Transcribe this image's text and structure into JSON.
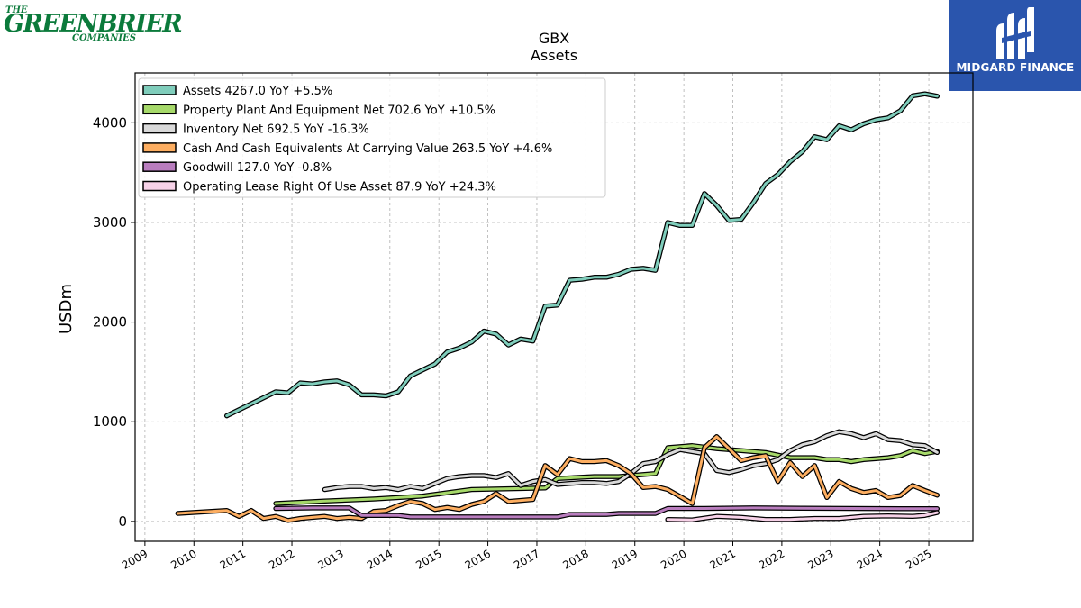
{
  "logos": {
    "company_the": "THE",
    "company_main": "GREENBRIER",
    "company_sub": "COMPANIES",
    "publisher": "MIDGARD FINANCE"
  },
  "chart_data": {
    "type": "line",
    "title": "GBX",
    "subtitle": "Assets",
    "ylabel": "USDm",
    "xlabel": "",
    "ylim": [
      -200,
      4500
    ],
    "xlim": [
      2008.8,
      2025.9
    ],
    "yticks": [
      0,
      1000,
      2000,
      3000,
      4000
    ],
    "xticks": [
      "2009",
      "2010",
      "2011",
      "2012",
      "2013",
      "2014",
      "2015",
      "2016",
      "2017",
      "2018",
      "2019",
      "2020",
      "2021",
      "2022",
      "2023",
      "2024",
      "2025"
    ],
    "grid": true,
    "legend_position": "top-left",
    "series": [
      {
        "name": "Assets",
        "legend": "Assets  4267.0 YoY +5.5%",
        "color": "#7fcdbb",
        "x": [
          2010.67,
          2011.67,
          2011.92,
          2012.17,
          2012.42,
          2012.67,
          2012.92,
          2013.17,
          2013.42,
          2013.67,
          2013.92,
          2014.17,
          2014.42,
          2014.67,
          2014.92,
          2015.17,
          2015.42,
          2015.67,
          2015.92,
          2016.17,
          2016.42,
          2016.67,
          2016.92,
          2017.17,
          2017.42,
          2017.67,
          2017.92,
          2018.17,
          2018.42,
          2018.67,
          2018.92,
          2019.17,
          2019.42,
          2019.67,
          2019.92,
          2020.17,
          2020.42,
          2020.67,
          2020.92,
          2021.17,
          2021.42,
          2021.67,
          2021.92,
          2022.17,
          2022.42,
          2022.67,
          2022.92,
          2023.17,
          2023.42,
          2023.67,
          2023.92,
          2024.17,
          2024.42,
          2024.67,
          2024.92,
          2025.17
        ],
        "y": [
          1060,
          1300,
          1290,
          1390,
          1380,
          1400,
          1410,
          1370,
          1270,
          1270,
          1260,
          1300,
          1460,
          1520,
          1580,
          1700,
          1740,
          1800,
          1910,
          1880,
          1770,
          1830,
          1810,
          2160,
          2170,
          2420,
          2430,
          2450,
          2450,
          2480,
          2530,
          2540,
          2520,
          3000,
          2970,
          2970,
          3290,
          3170,
          3020,
          3030,
          3200,
          3390,
          3480,
          3610,
          3710,
          3860,
          3830,
          3970,
          3930,
          3990,
          4030,
          4050,
          4120,
          4270,
          4290,
          4267
        ]
      },
      {
        "name": "Property Plant And Equipment Net",
        "legend": "Property Plant And Equipment Net  702.6 YoY +10.5%",
        "color": "#a6d96a",
        "x": [
          2011.67,
          2012.67,
          2013.67,
          2014.67,
          2015.67,
          2016.67,
          2017.17,
          2017.42,
          2018.17,
          2018.67,
          2019.17,
          2019.42,
          2019.67,
          2020.17,
          2020.67,
          2021.17,
          2021.67,
          2022.17,
          2022.67,
          2022.92,
          2023.17,
          2023.42,
          2023.67,
          2023.92,
          2024.17,
          2024.42,
          2024.67,
          2024.92,
          2025.17
        ],
        "y": [
          180,
          205,
          225,
          255,
          320,
          330,
          335,
          430,
          450,
          450,
          470,
          480,
          740,
          760,
          730,
          710,
          690,
          640,
          640,
          620,
          620,
          600,
          620,
          630,
          640,
          660,
          710,
          680,
          702.6
        ]
      },
      {
        "name": "Inventory Net",
        "legend": "Inventory Net  692.5 YoY -16.3%",
        "color": "#d9d9d9",
        "x": [
          2012.67,
          2012.92,
          2013.17,
          2013.42,
          2013.67,
          2013.92,
          2014.17,
          2014.42,
          2014.67,
          2014.92,
          2015.17,
          2015.42,
          2015.67,
          2015.92,
          2016.17,
          2016.42,
          2016.67,
          2016.92,
          2017.17,
          2017.42,
          2017.67,
          2017.92,
          2018.17,
          2018.42,
          2018.67,
          2018.92,
          2019.17,
          2019.42,
          2019.67,
          2019.92,
          2020.17,
          2020.42,
          2020.67,
          2020.92,
          2021.17,
          2021.42,
          2021.67,
          2021.92,
          2022.17,
          2022.42,
          2022.67,
          2022.92,
          2023.17,
          2023.42,
          2023.67,
          2023.92,
          2024.17,
          2024.42,
          2024.67,
          2024.92,
          2025.17
        ],
        "y": [
          320,
          340,
          350,
          350,
          330,
          340,
          320,
          350,
          330,
          380,
          430,
          450,
          460,
          460,
          440,
          480,
          360,
          400,
          420,
          370,
          380,
          390,
          390,
          380,
          400,
          480,
          580,
          600,
          670,
          720,
          700,
          680,
          510,
          490,
          520,
          560,
          580,
          620,
          710,
          770,
          800,
          860,
          900,
          880,
          840,
          880,
          820,
          810,
          770,
          760,
          692.5
        ]
      },
      {
        "name": "Cash And Cash Equivalents At Carrying Value",
        "legend": "Cash And Cash Equivalents At Carrying Value  263.5 YoY +4.6%",
        "color": "#fdae61",
        "x": [
          2009.67,
          2010.67,
          2010.92,
          2011.17,
          2011.42,
          2011.67,
          2011.92,
          2012.17,
          2012.42,
          2012.67,
          2012.92,
          2013.17,
          2013.42,
          2013.67,
          2013.92,
          2014.17,
          2014.42,
          2014.67,
          2014.92,
          2015.17,
          2015.42,
          2015.67,
          2015.92,
          2016.17,
          2016.42,
          2016.67,
          2016.92,
          2017.17,
          2017.42,
          2017.67,
          2017.92,
          2018.17,
          2018.42,
          2018.67,
          2018.92,
          2019.17,
          2019.42,
          2019.67,
          2019.92,
          2020.17,
          2020.42,
          2020.67,
          2020.92,
          2021.17,
          2021.42,
          2021.67,
          2021.92,
          2022.17,
          2022.42,
          2022.67,
          2022.92,
          2023.17,
          2023.42,
          2023.67,
          2023.92,
          2024.17,
          2024.42,
          2024.67,
          2024.92,
          2025.17
        ],
        "y": [
          80,
          110,
          50,
          110,
          30,
          50,
          10,
          30,
          40,
          50,
          30,
          40,
          30,
          100,
          110,
          160,
          200,
          180,
          120,
          140,
          120,
          170,
          200,
          280,
          200,
          210,
          220,
          560,
          470,
          630,
          600,
          600,
          610,
          560,
          480,
          340,
          350,
          320,
          250,
          180,
          740,
          850,
          730,
          610,
          640,
          660,
          400,
          590,
          450,
          560,
          240,
          400,
          330,
          290,
          310,
          240,
          260,
          360,
          310,
          263.5
        ]
      },
      {
        "name": "Goodwill",
        "legend": "Goodwill  127.0 YoY -0.8%",
        "color": "#b97dbe",
        "x": [
          2011.67,
          2012.42,
          2013.17,
          2013.42,
          2013.67,
          2014.17,
          2014.42,
          2015.17,
          2016.17,
          2017.17,
          2017.42,
          2017.67,
          2018.42,
          2018.67,
          2019.42,
          2019.67,
          2020.42,
          2021.42,
          2022.42,
          2023.42,
          2024.42,
          2025.17
        ],
        "y": [
          130,
          135,
          135,
          60,
          60,
          60,
          45,
          45,
          45,
          45,
          45,
          70,
          70,
          80,
          80,
          130,
          130,
          135,
          133,
          130,
          128,
          127
        ]
      },
      {
        "name": "Operating Lease Right Of Use Asset",
        "legend": "Operating Lease Right Of Use Asset  87.9 YoY +24.3%",
        "color": "#f7d2e8",
        "x": [
          2019.67,
          2020.17,
          2020.67,
          2021.17,
          2021.67,
          2022.17,
          2022.67,
          2023.17,
          2023.67,
          2024.17,
          2024.67,
          2024.92,
          2025.17
        ],
        "y": [
          20,
          15,
          50,
          40,
          20,
          20,
          30,
          30,
          50,
          55,
          50,
          60,
          87.9
        ]
      }
    ]
  }
}
